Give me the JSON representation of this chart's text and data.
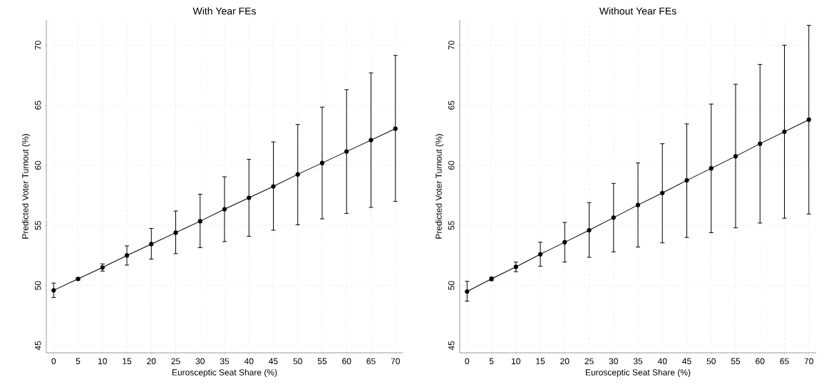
{
  "chart_data": [
    {
      "type": "line",
      "title": "With Year FEs",
      "xlabel": "Eurosceptic Seat Share (%)",
      "ylabel": "Predicted Voter Turnout (%)",
      "x": [
        0,
        5,
        10,
        15,
        20,
        25,
        30,
        35,
        40,
        45,
        50,
        55,
        60,
        65,
        70
      ],
      "series": [
        {
          "color": "#000000",
          "values": [
            49.6,
            50.55,
            51.5,
            52.5,
            53.45,
            54.4,
            55.35,
            56.35,
            57.3,
            58.25,
            59.25,
            60.2,
            61.15,
            62.1,
            63.05
          ],
          "errors": [
            [
              49.0,
              50.2
            ],
            [
              50.45,
              50.65
            ],
            [
              51.2,
              51.8
            ],
            [
              51.7,
              53.3
            ],
            [
              52.2,
              54.75
            ],
            [
              52.65,
              56.2
            ],
            [
              53.15,
              57.6
            ],
            [
              53.65,
              59.05
            ],
            [
              54.1,
              60.5
            ],
            [
              54.6,
              61.95
            ],
            [
              55.05,
              63.4
            ],
            [
              55.55,
              64.85
            ],
            [
              56.0,
              66.3
            ],
            [
              56.5,
              67.7
            ],
            [
              57.0,
              69.15
            ]
          ]
        }
      ],
      "xlim": [
        -1.5,
        71.5
      ],
      "ylim": [
        44.4,
        72.1
      ],
      "xticks": [
        0,
        5,
        10,
        15,
        20,
        25,
        30,
        35,
        40,
        45,
        50,
        55,
        60,
        65,
        70
      ],
      "yticks": [
        45,
        50,
        55,
        60,
        65,
        70
      ],
      "grid": true,
      "marker": "circle",
      "line_style": "solid"
    },
    {
      "type": "line",
      "title": "Without Year FEs",
      "xlabel": "Eurosceptic Seat Share (%)",
      "ylabel": "Predicted Voter Turnout (%)",
      "x": [
        0,
        5,
        10,
        15,
        20,
        25,
        30,
        35,
        40,
        45,
        50,
        55,
        60,
        65,
        70
      ],
      "series": [
        {
          "color": "#000000",
          "values": [
            49.5,
            50.55,
            51.55,
            52.6,
            53.6,
            54.6,
            55.65,
            56.7,
            57.7,
            58.75,
            59.75,
            60.75,
            61.8,
            62.8,
            63.8
          ],
          "errors": [
            [
              48.7,
              50.35
            ],
            [
              50.4,
              50.7
            ],
            [
              51.15,
              51.95
            ],
            [
              51.6,
              53.6
            ],
            [
              51.95,
              55.25
            ],
            [
              52.35,
              56.9
            ],
            [
              52.8,
              58.5
            ],
            [
              53.2,
              60.2
            ],
            [
              53.55,
              61.8
            ],
            [
              54.0,
              63.45
            ],
            [
              54.4,
              65.1
            ],
            [
              54.8,
              66.75
            ],
            [
              55.2,
              68.4
            ],
            [
              55.6,
              70.0
            ],
            [
              55.95,
              71.65
            ]
          ]
        }
      ],
      "xlim": [
        -1.5,
        71.5
      ],
      "ylim": [
        44.4,
        72.1
      ],
      "xticks": [
        0,
        5,
        10,
        15,
        20,
        25,
        30,
        35,
        40,
        45,
        50,
        55,
        60,
        65,
        70
      ],
      "yticks": [
        45,
        50,
        55,
        60,
        65,
        70
      ],
      "grid": true,
      "marker": "circle",
      "line_style": "solid"
    }
  ]
}
